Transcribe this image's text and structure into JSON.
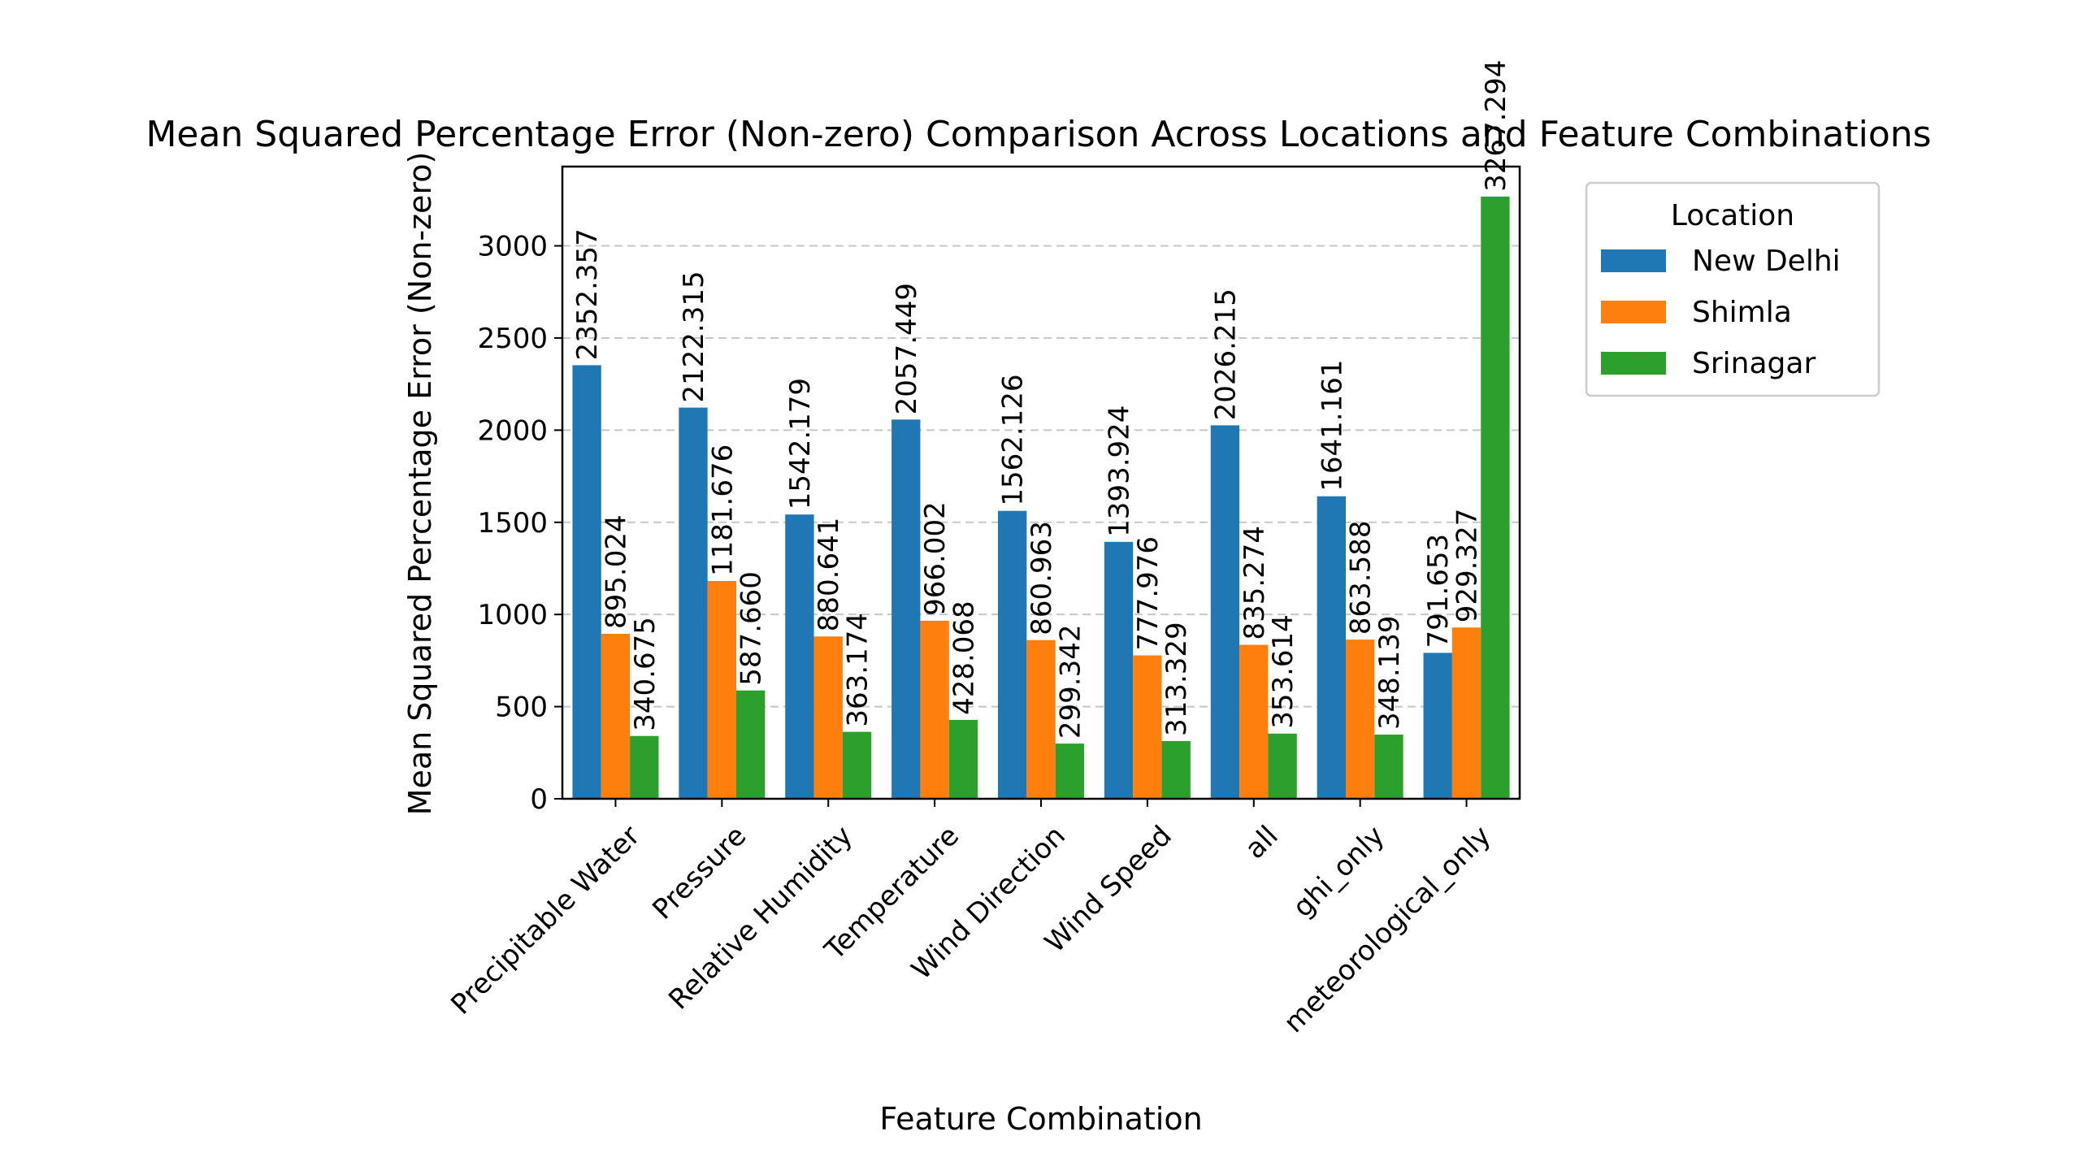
{
  "chart_data": {
    "type": "bar",
    "title": "Mean Squared Percentage Error (Non-zero) Comparison Across Locations and Feature Combinations",
    "xlabel": "Feature Combination",
    "ylabel": "Mean Squared Percentage Error (Non-zero)",
    "ylim": [
      0,
      3430
    ],
    "yticks": [
      0,
      500,
      1000,
      1500,
      2000,
      2500,
      3000
    ],
    "grid": "y-dashed",
    "legend_title": "Location",
    "legend_position": "outside-right",
    "categories": [
      "Precipitable Water",
      "Pressure",
      "Relative Humidity",
      "Temperature",
      "Wind Direction",
      "Wind Speed",
      "all",
      "ghi_only",
      "meteorological_only"
    ],
    "series": [
      {
        "name": "New Delhi",
        "color": "#1f77b4",
        "values": [
          2352.357,
          2122.315,
          1542.179,
          2057.449,
          1562.126,
          1393.924,
          2026.215,
          1641.161,
          791.653
        ],
        "labels": [
          "2352.357",
          "2122.315",
          "1542.179",
          "2057.449",
          "1562.126",
          "1393.924",
          "2026.215",
          "1641.161",
          "791.653"
        ]
      },
      {
        "name": "Shimla",
        "color": "#ff7f0e",
        "values": [
          895.024,
          1181.676,
          880.641,
          966.002,
          860.963,
          777.976,
          835.274,
          863.588,
          929.327
        ],
        "labels": [
          "895.024",
          "1181.676",
          "880.641",
          "966.002",
          "860.963",
          "777.976",
          "835.274",
          "863.588",
          "929.327"
        ]
      },
      {
        "name": "Srinagar",
        "color": "#2ca02c",
        "values": [
          340.675,
          587.66,
          363.174,
          428.068,
          299.342,
          313.329,
          353.614,
          348.139,
          3267.294
        ],
        "labels": [
          "340.675",
          "587.660",
          "363.174",
          "428.068",
          "299.342",
          "313.329",
          "353.614",
          "348.139",
          "3267.294"
        ]
      }
    ]
  }
}
